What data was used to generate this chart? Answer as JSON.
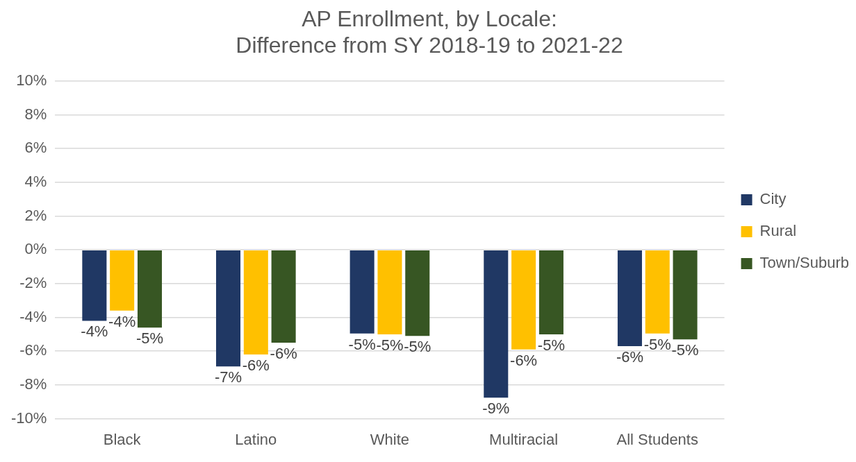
{
  "chart_data": {
    "type": "bar",
    "title": [
      "AP Enrollment, by Locale:",
      "Difference from SY 2018-19 to 2021-22"
    ],
    "categories": [
      "Black",
      "Latino",
      "White",
      "Multiracial",
      "All Students"
    ],
    "series": [
      {
        "name": "City",
        "color": "#203864",
        "values": [
          -4.2,
          -6.9,
          -4.95,
          -8.75,
          -5.7
        ],
        "value_labels": [
          "-4%",
          "-7%",
          "-5%",
          "-9%",
          "-6%"
        ]
      },
      {
        "name": "Rural",
        "color": "#ffc000",
        "values": [
          -3.6,
          -6.2,
          -5.0,
          -5.9,
          -4.95
        ],
        "value_labels": [
          "-4%",
          "-6%",
          "-5%",
          "-6%",
          "-5%"
        ]
      },
      {
        "name": "Town/Suburb",
        "color": "#375623",
        "values": [
          -4.6,
          -5.5,
          -5.1,
          -5.0,
          -5.3
        ],
        "value_labels": [
          "-5%",
          "-6%",
          "-5%",
          "-5%",
          "-5%"
        ]
      }
    ],
    "ylim": [
      -10,
      10
    ],
    "yticks": [
      {
        "value": -10,
        "label": "-10%"
      },
      {
        "value": -8,
        "label": "-8%"
      },
      {
        "value": -6,
        "label": "-6%"
      },
      {
        "value": -4,
        "label": "-4%"
      },
      {
        "value": -2,
        "label": "-2%"
      },
      {
        "value": 0,
        "label": "0%"
      },
      {
        "value": 2,
        "label": "2%"
      },
      {
        "value": 4,
        "label": "4%"
      },
      {
        "value": 6,
        "label": "6%"
      },
      {
        "value": 8,
        "label": "8%"
      },
      {
        "value": 10,
        "label": "10%"
      }
    ],
    "grid": "y",
    "legend": "right"
  }
}
